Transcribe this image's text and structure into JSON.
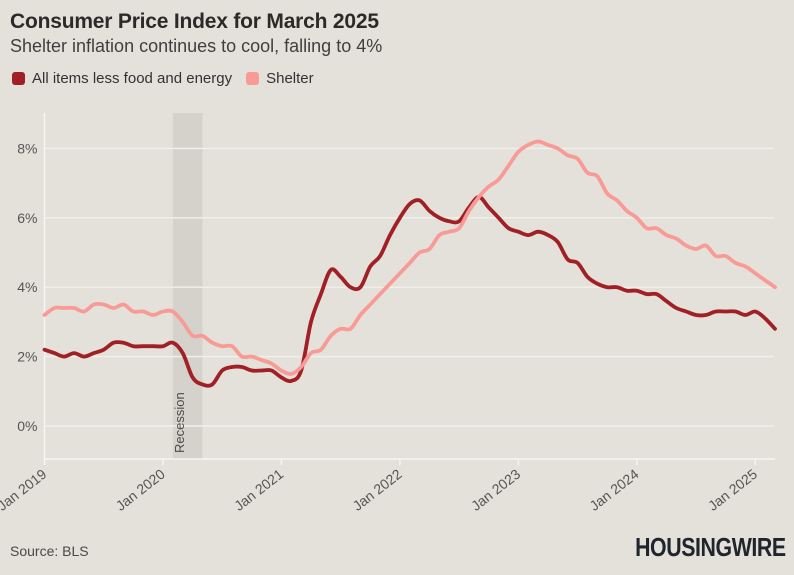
{
  "header": {
    "title": "Consumer Price Index for March 2025",
    "subtitle": "Shelter inflation continues to cool, falling to 4%"
  },
  "legend": [
    {
      "label": "All items less food and energy",
      "color": "#a02025"
    },
    {
      "label": "Shelter",
      "color": "#f89b97"
    }
  ],
  "footer": {
    "source": "Source: BLS",
    "logo": "HOUSINGWIRE"
  },
  "colors": {
    "background": "#e4e1db",
    "recession_band": "#d5d2cc",
    "gridline": "#f2f0ea",
    "axis": "#f7f5f0",
    "core_line": "#a02025",
    "shelter_line": "#f89b97"
  },
  "chart_data": {
    "type": "line",
    "title": "Consumer Price Index for March 2025",
    "subtitle": "Shelter inflation continues to cool, falling to 4%",
    "x_start": "Jan 2019",
    "x_end": "Mar 2025",
    "x_interval": "monthly",
    "ylim": [
      -1,
      9
    ],
    "grid": true,
    "legend_position": "top",
    "y_ticks": [
      {
        "value": 0,
        "label": "0%"
      },
      {
        "value": 2,
        "label": "2%"
      },
      {
        "value": 4,
        "label": "4%"
      },
      {
        "value": 6,
        "label": "6%"
      },
      {
        "value": 8,
        "label": "8%"
      }
    ],
    "x_ticks": [
      {
        "index": 0,
        "label": "Jan 2019"
      },
      {
        "index": 12,
        "label": "Jan 2020"
      },
      {
        "index": 24,
        "label": "Jan 2021"
      },
      {
        "index": 36,
        "label": "Jan 2022"
      },
      {
        "index": 48,
        "label": "Jan 2023"
      },
      {
        "index": 60,
        "label": "Jan 2024"
      },
      {
        "index": 72,
        "label": "Jan 2025"
      }
    ],
    "recession": {
      "label": "Recession",
      "start": "Feb 2020",
      "end": "May 2020",
      "start_index": 13,
      "end_index": 16
    },
    "series": [
      {
        "name": "All items less food and energy",
        "color": "#a02025",
        "values": [
          2.2,
          2.1,
          2.0,
          2.1,
          2.0,
          2.1,
          2.2,
          2.4,
          2.4,
          2.3,
          2.3,
          2.3,
          2.3,
          2.4,
          2.1,
          1.4,
          1.2,
          1.2,
          1.6,
          1.7,
          1.7,
          1.6,
          1.6,
          1.6,
          1.4,
          1.3,
          1.6,
          3.0,
          3.8,
          4.5,
          4.3,
          4.0,
          4.0,
          4.6,
          4.9,
          5.5,
          6.0,
          6.4,
          6.5,
          6.2,
          6.0,
          5.9,
          5.9,
          6.3,
          6.6,
          6.3,
          6.0,
          5.7,
          5.6,
          5.5,
          5.6,
          5.5,
          5.3,
          4.8,
          4.7,
          4.3,
          4.1,
          4.0,
          4.0,
          3.9,
          3.9,
          3.8,
          3.8,
          3.6,
          3.4,
          3.3,
          3.2,
          3.2,
          3.3,
          3.3,
          3.3,
          3.2,
          3.3,
          3.1,
          2.8
        ]
      },
      {
        "name": "Shelter",
        "color": "#f89b97",
        "values": [
          3.2,
          3.4,
          3.4,
          3.4,
          3.3,
          3.5,
          3.5,
          3.4,
          3.5,
          3.3,
          3.3,
          3.2,
          3.3,
          3.3,
          3.0,
          2.6,
          2.6,
          2.4,
          2.3,
          2.3,
          2.0,
          2.0,
          1.9,
          1.8,
          1.6,
          1.5,
          1.7,
          2.1,
          2.2,
          2.6,
          2.8,
          2.8,
          3.2,
          3.5,
          3.8,
          4.1,
          4.4,
          4.7,
          5.0,
          5.1,
          5.5,
          5.6,
          5.7,
          6.2,
          6.6,
          6.9,
          7.1,
          7.5,
          7.9,
          8.1,
          8.2,
          8.1,
          8.0,
          7.8,
          7.7,
          7.3,
          7.2,
          6.7,
          6.5,
          6.2,
          6.0,
          5.7,
          5.7,
          5.5,
          5.4,
          5.2,
          5.1,
          5.2,
          4.9,
          4.9,
          4.7,
          4.6,
          4.4,
          4.2,
          4.0
        ]
      }
    ]
  }
}
